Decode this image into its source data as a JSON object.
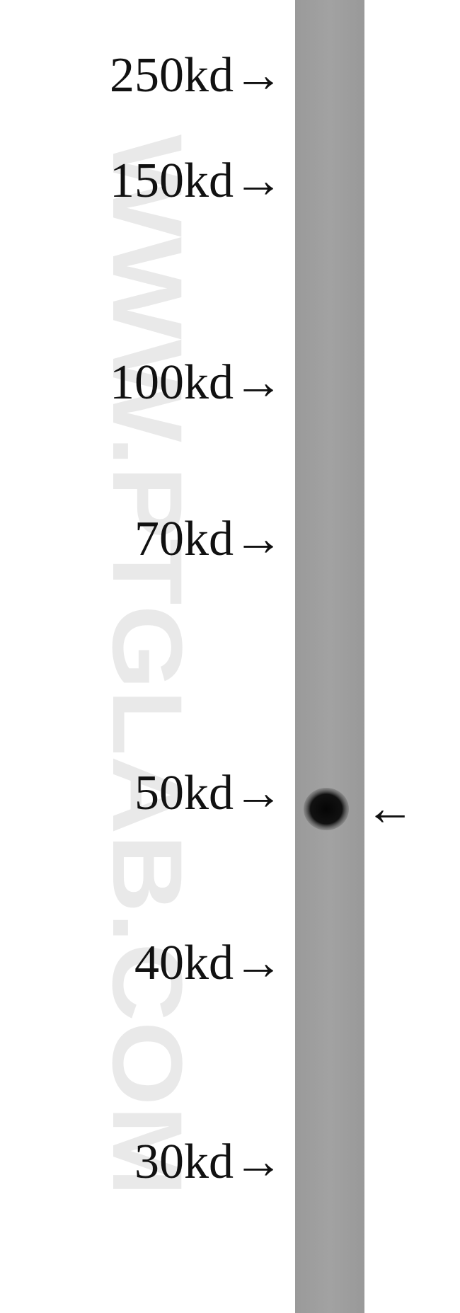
{
  "watermark": "WWW.PTGLAB.COM",
  "markers": [
    "250kd→",
    "150kd→",
    "100kd→",
    "70kd→",
    "50kd→",
    "40kd→",
    "30kd→"
  ],
  "band_arrow": "←"
}
